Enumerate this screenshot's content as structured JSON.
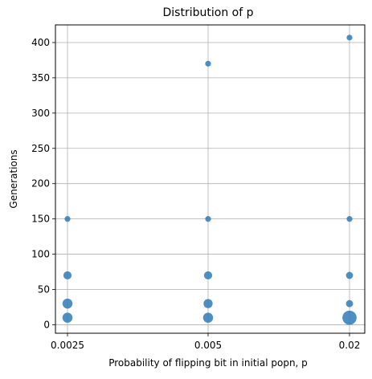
{
  "chart_data": {
    "type": "scatter",
    "title": "Distribution of p",
    "xlabel": "Probability of flipping bit in initial popn, p",
    "ylabel": "Generations",
    "categories": [
      "0.0025",
      "0.005",
      "0.02"
    ],
    "ylim": [
      -12,
      425
    ],
    "yticks": [
      0,
      50,
      100,
      150,
      200,
      250,
      300,
      350,
      400
    ],
    "grid": true,
    "legend": "none",
    "marker_color": "#2f7bb8",
    "points": [
      {
        "category": "0.0025",
        "y": 10,
        "count": 3
      },
      {
        "category": "0.0025",
        "y": 30,
        "count": 3
      },
      {
        "category": "0.0025",
        "y": 70,
        "count": 2
      },
      {
        "category": "0.0025",
        "y": 150,
        "count": 1
      },
      {
        "category": "0.005",
        "y": 10,
        "count": 3
      },
      {
        "category": "0.005",
        "y": 30,
        "count": 2.5
      },
      {
        "category": "0.005",
        "y": 70,
        "count": 2
      },
      {
        "category": "0.005",
        "y": 150,
        "count": 1
      },
      {
        "category": "0.005",
        "y": 370,
        "count": 1
      },
      {
        "category": "0.02",
        "y": 10,
        "count": 6
      },
      {
        "category": "0.02",
        "y": 30,
        "count": 1.5
      },
      {
        "category": "0.02",
        "y": 70,
        "count": 1.5
      },
      {
        "category": "0.02",
        "y": 150,
        "count": 1
      },
      {
        "category": "0.02",
        "y": 407,
        "count": 1
      }
    ]
  }
}
